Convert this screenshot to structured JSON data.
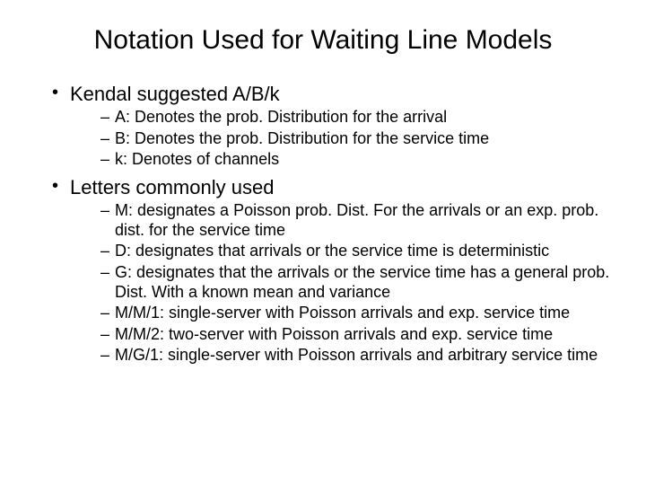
{
  "title": "Notation Used for Waiting Line Models",
  "bullets": [
    {
      "text": "Kendal suggested A/B/k",
      "sub": [
        "A: Denotes the prob. Distribution for the arrival",
        "B: Denotes the prob. Distribution for the service time",
        "k: Denotes of channels"
      ]
    },
    {
      "text": "Letters commonly used",
      "sub": [
        "M: designates a Poisson prob. Dist. For the arrivals or an exp. prob. dist. for the service time",
        "D:  designates that arrivals or the service time is deterministic",
        "G: designates that the arrivals or the service time has a general prob. Dist. With a known mean and variance",
        "M/M/1: single-server with Poisson arrivals and exp. service time",
        "M/M/2: two-server with Poisson arrivals and exp. service time",
        "M/G/1: single-server with Poisson arrivals and arbitrary service time"
      ]
    }
  ],
  "style": {
    "background_color": "#ffffff",
    "text_color": "#000000",
    "font_family": "Arial",
    "title_fontsize": 30,
    "lvl1_fontsize": 22,
    "lvl2_fontsize": 18
  }
}
